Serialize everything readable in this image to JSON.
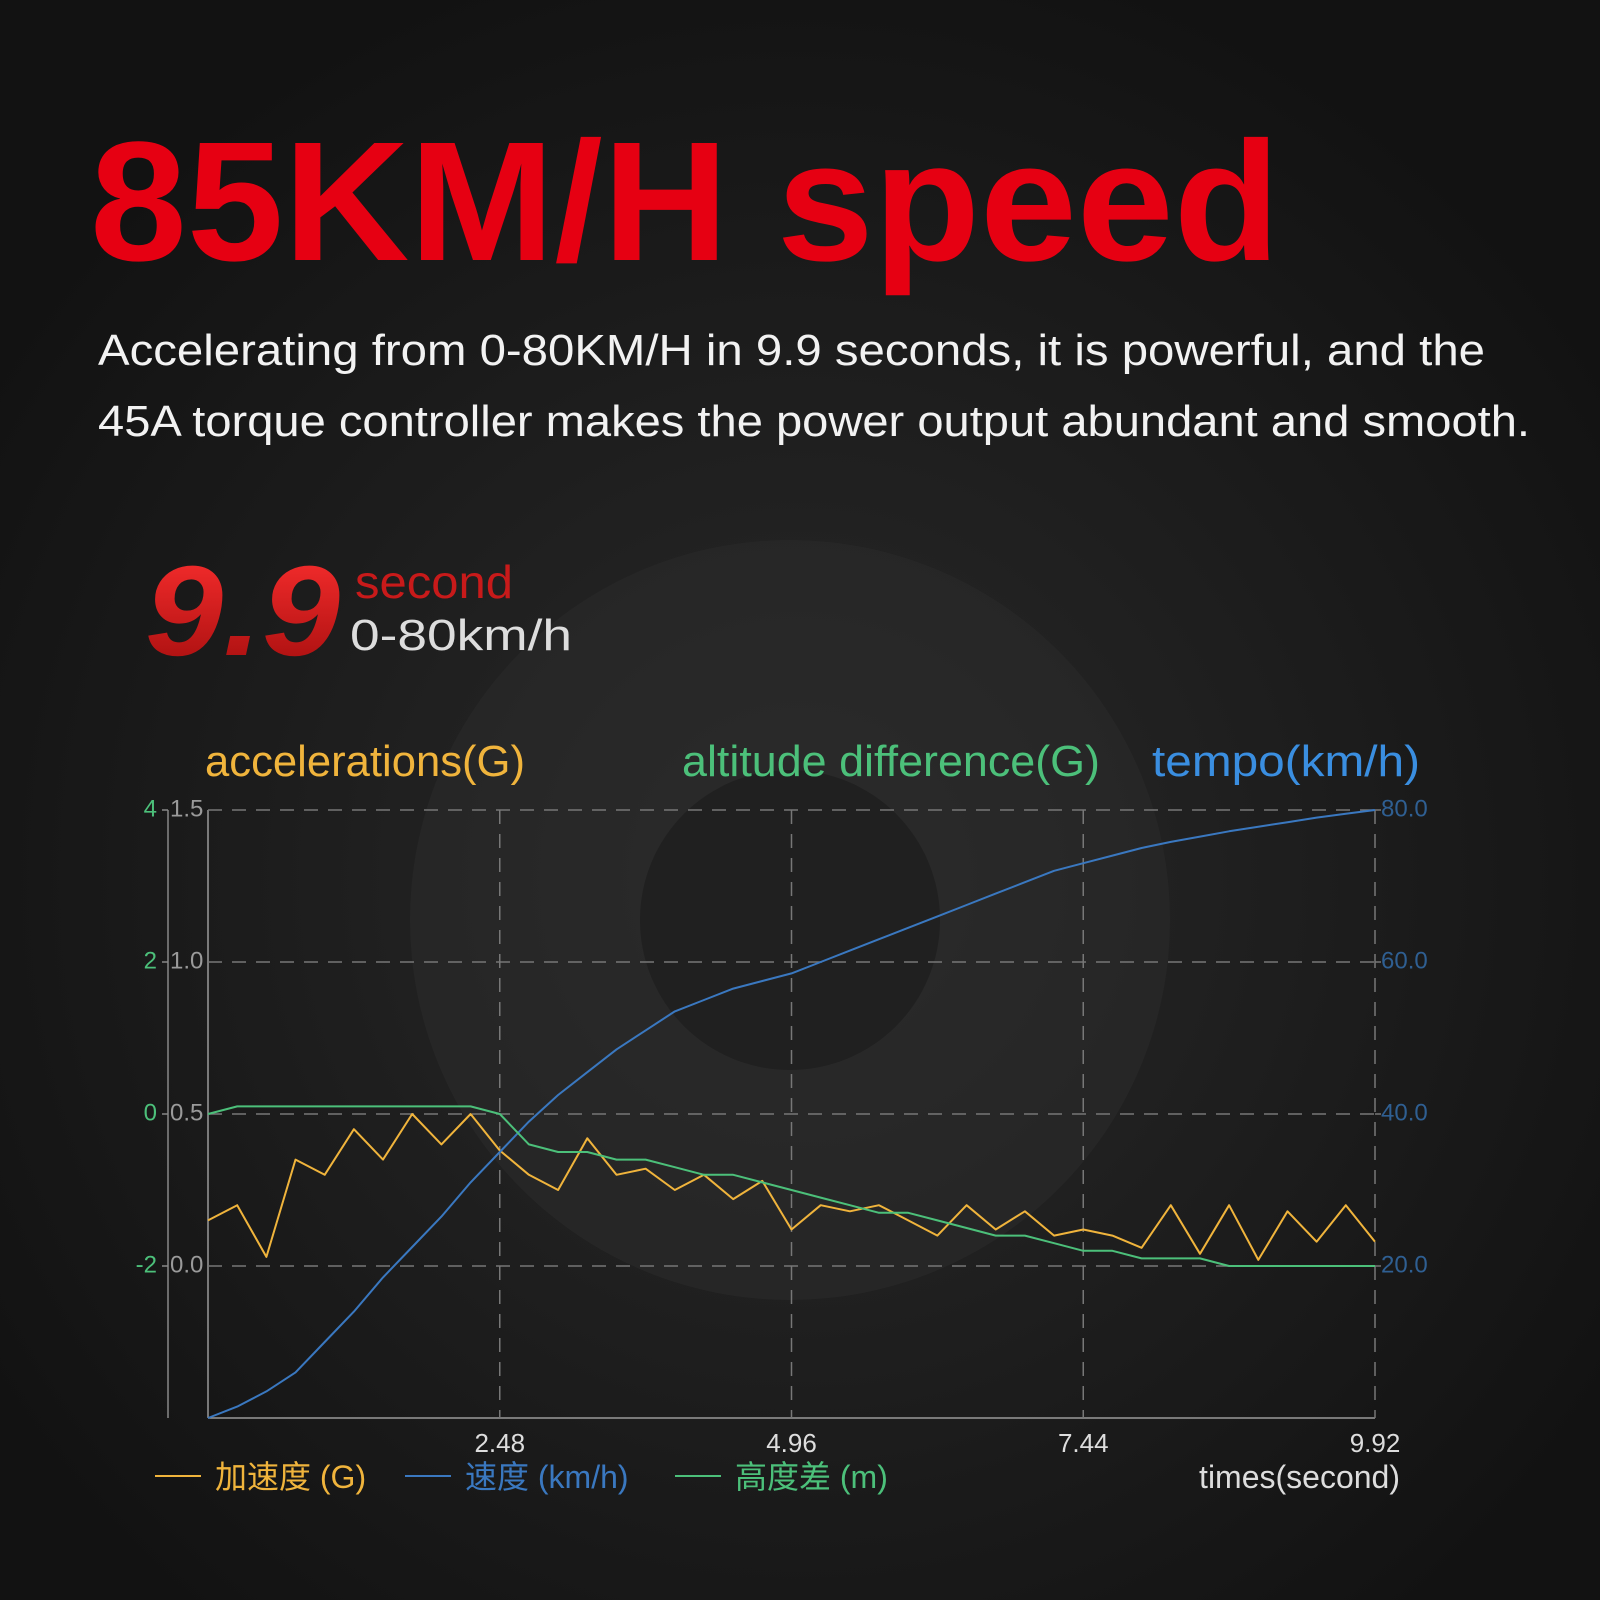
{
  "headline": "85KM/H speed",
  "description": [
    "Accelerating from 0-80KM/H in 9.9 seconds, it is powerful, and the",
    "45A torque controller makes the power output abundant and smooth."
  ],
  "badge": {
    "number": "9.9",
    "unit": "second",
    "range": "0-80km/h"
  },
  "chart_data": {
    "type": "line",
    "y_label": "accelerations(G)",
    "y3_label": "altitude difference(G)",
    "y2_label": "tempo(km/h)",
    "xlabel": "times(second)",
    "x": [
      0,
      0.248,
      0.496,
      0.744,
      0.992,
      1.24,
      1.488,
      1.736,
      1.984,
      2.232,
      2.48,
      2.728,
      2.976,
      3.224,
      3.472,
      3.72,
      3.968,
      4.216,
      4.464,
      4.712,
      4.96,
      5.208,
      5.456,
      5.704,
      5.952,
      6.2,
      6.448,
      6.696,
      6.944,
      7.192,
      7.44,
      7.688,
      7.936,
      8.184,
      8.432,
      8.68,
      8.928,
      9.176,
      9.424,
      9.672,
      9.92
    ],
    "xlim": [
      0,
      9.92
    ],
    "xticks": [
      2.48,
      4.96,
      7.44,
      9.92
    ],
    "ylim": [
      -0.5,
      1.5
    ],
    "yticks": [
      1.5,
      {
        "value": 1,
        "label": "1.0"
      },
      0.5,
      {
        "value": 0,
        "label": "0.0"
      }
    ],
    "y2lim": [
      0,
      80
    ],
    "y2ticks": [
      {
        "value": 80,
        "label": "80.0"
      },
      {
        "value": 60,
        "label": "60.0"
      },
      {
        "value": 40,
        "label": "40.0"
      },
      {
        "value": 20,
        "label": "20.0"
      }
    ],
    "y3lim": [
      -4,
      4
    ],
    "y3ticks": [
      4,
      2,
      0,
      -2
    ],
    "grid": true,
    "series": [
      {
        "name": "加速度 (G)",
        "color": "#f0b43c",
        "axis": "y",
        "values": [
          0.15,
          0.2,
          0.03,
          0.35,
          0.3,
          0.45,
          0.35,
          0.5,
          0.4,
          0.5,
          0.38,
          0.3,
          0.25,
          0.42,
          0.3,
          0.32,
          0.25,
          0.3,
          0.22,
          0.28,
          0.12,
          0.2,
          0.18,
          0.2,
          0.15,
          0.1,
          0.2,
          0.12,
          0.18,
          0.1,
          0.12,
          0.1,
          0.06,
          0.2,
          0.04,
          0.2,
          0.02,
          0.18,
          0.08,
          0.2,
          0.08
        ]
      },
      {
        "name": "速度 (km/h)",
        "color": "#3a78c0",
        "axis": "y2",
        "values": [
          0,
          1.5,
          3.5,
          6,
          10,
          14,
          18.5,
          22.5,
          26.5,
          31,
          35,
          39,
          42.5,
          45.5,
          48.5,
          51,
          53.5,
          55,
          56.5,
          57.5,
          58.5,
          60,
          61.5,
          63,
          64.5,
          66,
          67.5,
          69,
          70.5,
          72,
          73,
          74,
          75,
          75.8,
          76.5,
          77.2,
          77.8,
          78.4,
          79,
          79.5,
          80
        ]
      },
      {
        "name": "高度差 (m)",
        "color": "#4cc07a",
        "axis": "y3",
        "values": [
          0,
          0.1,
          0.1,
          0.1,
          0.1,
          0.1,
          0.1,
          0.1,
          0.1,
          0.1,
          0,
          -0.4,
          -0.5,
          -0.5,
          -0.6,
          -0.6,
          -0.7,
          -0.8,
          -0.8,
          -0.9,
          -1.0,
          -1.1,
          -1.2,
          -1.3,
          -1.3,
          -1.4,
          -1.5,
          -1.6,
          -1.6,
          -1.7,
          -1.8,
          -1.8,
          -1.9,
          -1.9,
          -1.9,
          -2,
          -2,
          -2,
          -2,
          -2,
          -2
        ]
      }
    ]
  }
}
